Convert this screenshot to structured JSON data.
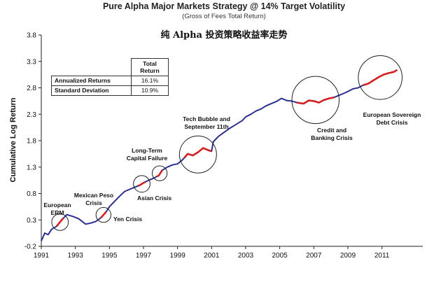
{
  "header": {
    "title": "Pure Alpha Major Markets Strategy @ 14% Target Volatility",
    "subtitle": "(Gross of Fees Total Return)",
    "chinese_title": "纯 Alpha 投资策略收益率走势"
  },
  "stats_table": {
    "column_header_line1": "Total",
    "column_header_line2": "Return",
    "rows": [
      {
        "label": "Annualized Returns",
        "value": "16.1%"
      },
      {
        "label": "Standard Deviation",
        "value": "10.9%"
      }
    ]
  },
  "chart_data": {
    "type": "line",
    "title": "Pure Alpha Major Markets Strategy @ 14% Target Volatility",
    "subtitle": "(Gross of Fees Total Return)",
    "xlabel": "",
    "ylabel": "Cumulative Log Return",
    "xlim": [
      1991,
      2013.4
    ],
    "ylim": [
      -0.2,
      3.8
    ],
    "x_ticks": [
      1991,
      1993,
      1995,
      1997,
      1999,
      2001,
      2003,
      2005,
      2007,
      2009,
      2011
    ],
    "y_ticks": [
      -0.2,
      0.3,
      0.8,
      1.3,
      1.8,
      2.3,
      2.8,
      3.3,
      3.8
    ],
    "y_tick_labels": [
      "-0.2",
      "0.3",
      "0.8",
      "1.3",
      "1.8",
      "2.3",
      "2.8",
      "3.3",
      "3.8"
    ],
    "grid": false,
    "line_color": "#2b2f8f",
    "highlight_color": "#d42020",
    "series": [
      {
        "x": [
          1991.0,
          1991.2,
          1991.4,
          1991.6,
          1991.9,
          1992.2,
          1992.5,
          1992.9,
          1993.2,
          1993.6,
          1993.9,
          1994.2,
          1994.5,
          1994.8,
          1995.0,
          1995.3,
          1995.6,
          1995.9,
          1996.2,
          1996.5,
          1996.8,
          1997.0,
          1997.3,
          1997.6,
          1997.9,
          1998.1,
          1998.4,
          1998.7,
          1999.0,
          1999.3,
          1999.6,
          1999.9,
          2000.2,
          2000.5,
          2000.8,
          2001.0,
          2001.1,
          2001.4,
          2001.7,
          2002.0,
          2002.4,
          2002.8,
          2003.0,
          2003.3,
          2003.6,
          2003.9,
          2004.2,
          2004.5,
          2004.8,
          2005.1,
          2005.4,
          2005.7,
          2006.0,
          2006.4,
          2006.7,
          2007.0,
          2007.3,
          2007.6,
          2007.9,
          2008.2,
          2008.5,
          2008.8,
          2009.0,
          2009.3,
          2009.6,
          2009.9,
          2010.2,
          2010.5,
          2010.8,
          2011.1,
          2011.4,
          2011.7,
          2011.9
        ],
        "y": [
          -0.1,
          0.05,
          0.02,
          0.12,
          0.18,
          0.3,
          0.4,
          0.36,
          0.32,
          0.22,
          0.24,
          0.27,
          0.34,
          0.45,
          0.55,
          0.65,
          0.75,
          0.84,
          0.88,
          0.92,
          0.96,
          1.0,
          1.05,
          1.09,
          1.14,
          1.24,
          1.3,
          1.34,
          1.36,
          1.44,
          1.55,
          1.52,
          1.58,
          1.66,
          1.62,
          1.6,
          1.78,
          1.88,
          1.95,
          2.02,
          2.1,
          2.18,
          2.25,
          2.3,
          2.36,
          2.4,
          2.46,
          2.5,
          2.54,
          2.6,
          2.56,
          2.55,
          2.52,
          2.5,
          2.56,
          2.55,
          2.52,
          2.57,
          2.6,
          2.62,
          2.66,
          2.7,
          2.73,
          2.78,
          2.8,
          2.85,
          2.88,
          2.94,
          3.0,
          3.05,
          3.08,
          3.1,
          3.14
        ]
      }
    ],
    "highlights": [
      {
        "x_from": 1991.9,
        "x_to": 1992.3
      },
      {
        "x_from": 1994.5,
        "x_to": 1994.8
      },
      {
        "x_from": 1996.7,
        "x_to": 1997.1
      },
      {
        "x_from": 1997.8,
        "x_to": 1998.1
      },
      {
        "x_from": 1999.4,
        "x_to": 2001.0
      },
      {
        "x_from": 2006.0,
        "x_to": 2008.2
      },
      {
        "x_from": 2009.9,
        "x_to": 2011.9
      }
    ],
    "annotations": [
      {
        "lines": [
          "European",
          "ERM"
        ],
        "x": 1992.0,
        "y": 0.24
      },
      {
        "lines": [
          "Mexican Peso",
          "Crisis"
        ],
        "x": 1994.0,
        "y": 0.45
      },
      {
        "lines": [
          "Yen Crisis"
        ],
        "x": 1994.6,
        "y": 0.32
      },
      {
        "lines": [
          "Asian Crisis"
        ],
        "x": 1997.0,
        "y": 0.96
      },
      {
        "lines": [
          "Long-Term",
          "Capital Failure"
        ],
        "x": 1998.0,
        "y": 1.13
      },
      {
        "lines": [
          "Tech Bubble and",
          "September 11th"
        ],
        "x": 2000.3,
        "y": 1.6
      },
      {
        "lines": [
          "Credit and",
          "Banking Crisis"
        ],
        "x": 2007.1,
        "y": 2.56
      },
      {
        "lines": [
          "European Sovereign",
          "Debt Crisis"
        ],
        "x": 2010.9,
        "y": 3.05
      }
    ]
  }
}
